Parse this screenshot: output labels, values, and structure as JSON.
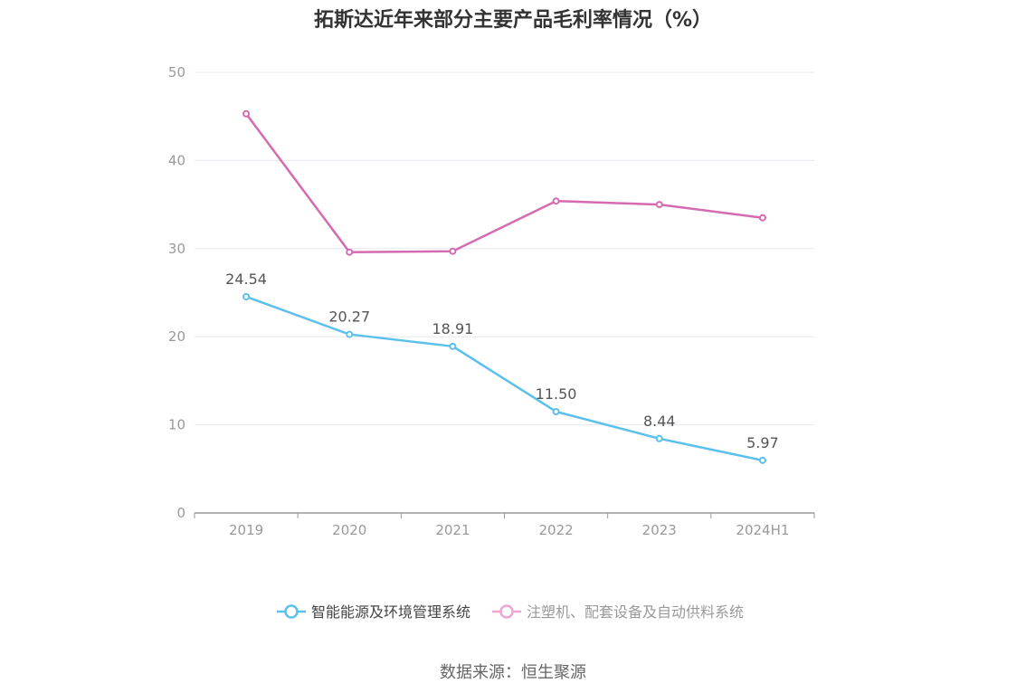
{
  "chart_data": {
    "type": "line",
    "title": "拓斯达近年来部分主要产品毛利率情况（%）",
    "categories": [
      "2019",
      "2020",
      "2021",
      "2022",
      "2023",
      "2024H1"
    ],
    "ylim": [
      0,
      50
    ],
    "yticks": [
      0,
      10,
      20,
      30,
      40,
      50
    ],
    "grid": true,
    "legend_position": "bottom",
    "series": [
      {
        "name": "智能能源及环境管理系统",
        "color": "#5bc0eb",
        "values": [
          24.54,
          20.27,
          18.91,
          11.5,
          8.44,
          5.97
        ],
        "labels": [
          "24.54",
          "20.27",
          "18.91",
          "11.50",
          "8.44",
          "5.97"
        ],
        "show_labels": true,
        "legend_active": true
      },
      {
        "name": "注塑机、配套设备及自动供料系统",
        "color": "#d46bb1",
        "values": [
          45.3,
          29.6,
          29.7,
          35.4,
          35.0,
          33.5
        ],
        "show_labels": false,
        "legend_active": false
      }
    ]
  },
  "source": "数据来源：恒生聚源"
}
